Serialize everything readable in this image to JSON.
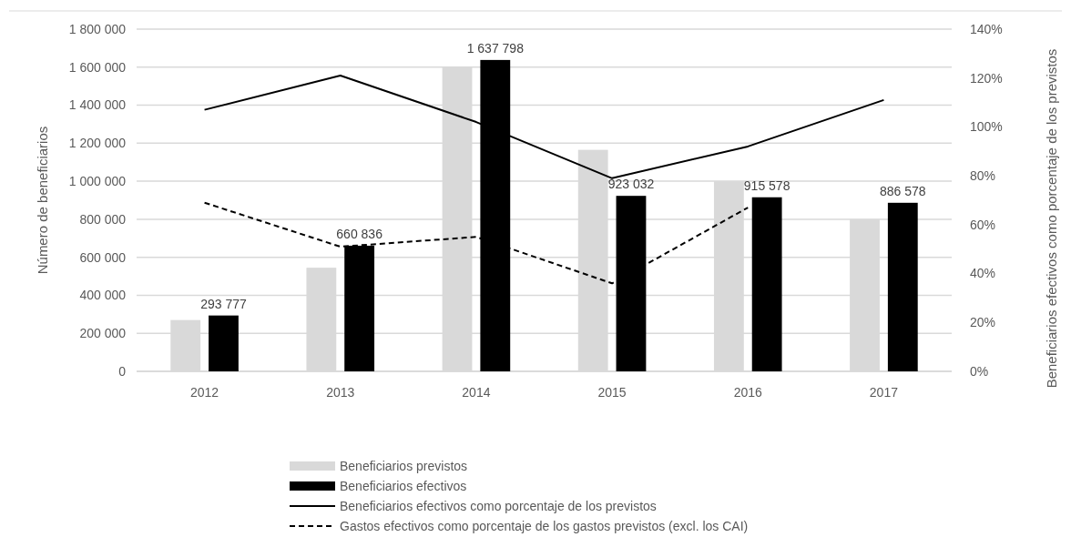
{
  "chart_data": {
    "type": "bar",
    "categories": [
      "2012",
      "2013",
      "2014",
      "2015",
      "2016",
      "2017"
    ],
    "ylabel": "Número de beneficiarios",
    "y2label": "Beneficiarios efectivos como porcentaje de los previstos",
    "ylim": [
      0,
      1800000
    ],
    "yticks": [
      0,
      {
        "value": 200000,
        "label": "200 000"
      },
      {
        "value": 400000,
        "label": "400 000"
      },
      {
        "value": 600000,
        "label": "600 000"
      },
      {
        "value": 800000,
        "label": "800 000"
      },
      {
        "value": 1000000,
        "label": "1 000 000"
      },
      {
        "value": 1200000,
        "label": "1 200 000"
      },
      {
        "value": 1400000,
        "label": "1 400 000"
      },
      {
        "value": 1600000,
        "label": "1 600 000"
      },
      {
        "value": 1800000,
        "label": "1 800 000"
      }
    ],
    "y2lim": [
      0,
      140
    ],
    "y2ticks": [
      {
        "value": 0,
        "label": "0%"
      },
      {
        "value": 20,
        "label": "20%"
      },
      {
        "value": 40,
        "label": "40%"
      },
      {
        "value": 60,
        "label": "60%"
      },
      {
        "value": 80,
        "label": "80%"
      },
      {
        "value": 100,
        "label": "100%"
      },
      {
        "value": 120,
        "label": "120%"
      },
      {
        "value": 140,
        "label": "140%"
      }
    ],
    "grid": "y",
    "legend": "bottom",
    "series": [
      {
        "name": "Beneficiarios previstos",
        "color": "#d9d9d9",
        "values": [
          270000,
          545000,
          1600000,
          1165000,
          1000000,
          800000
        ]
      },
      {
        "name": "Beneficiarios efectivos",
        "color": "#000000",
        "values": [
          293777,
          660836,
          1637798,
          923032,
          915578,
          886578
        ],
        "value_labels": [
          "293 777",
          "660 836",
          "1 637 798",
          "923 032",
          "915 578",
          "886 578"
        ]
      },
      {
        "name": "Beneficiarios efectivos como porcentaje de los previstos",
        "type": "line",
        "axis": "y2",
        "color": "#000000",
        "line_style": "solid",
        "values": [
          107,
          121,
          102,
          79,
          92,
          111
        ]
      },
      {
        "name": "Gastos efectivos como porcentaje de los gastos previstos (excl. los CAI)",
        "type": "line",
        "axis": "y2",
        "color": "#000000",
        "line_style": "dashed",
        "values": [
          69,
          51,
          55,
          36,
          67,
          null
        ]
      }
    ]
  }
}
